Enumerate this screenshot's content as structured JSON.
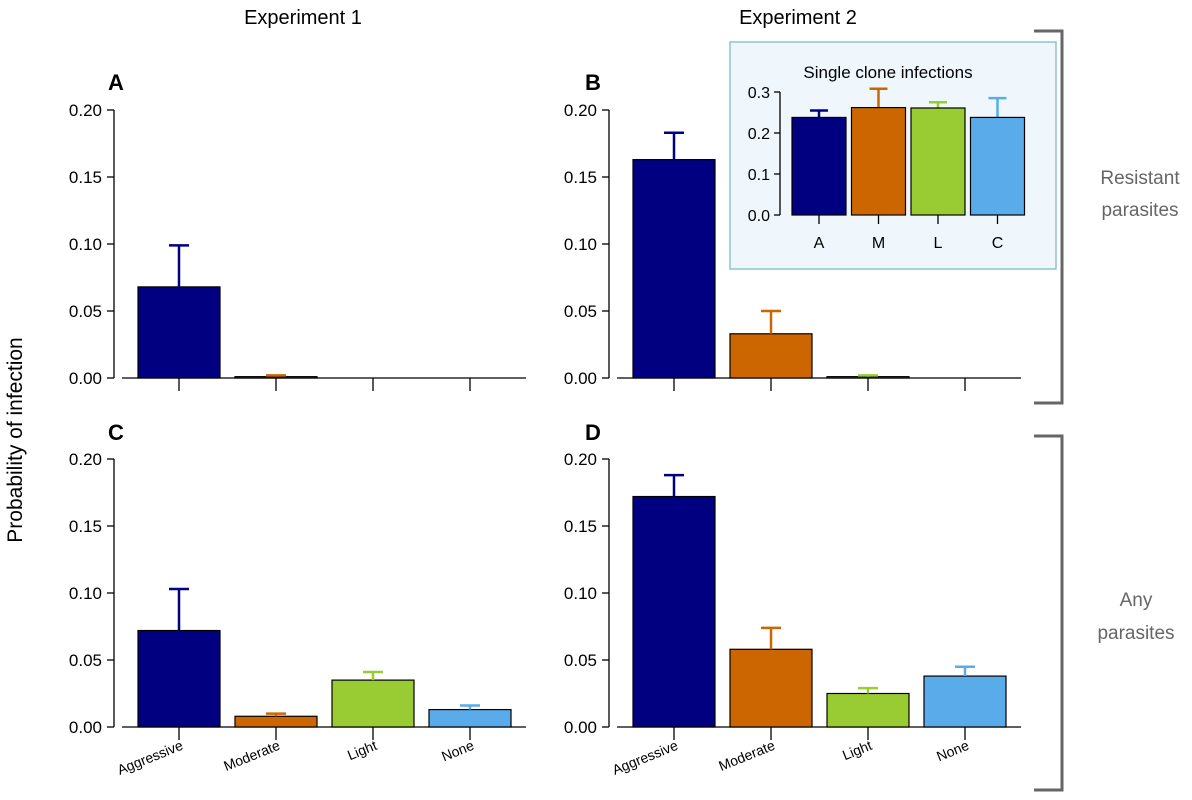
{
  "figure": {
    "column_titles": [
      "Experiment 1",
      "Experiment 2"
    ],
    "y_axis_label": "Probability of infection",
    "row_labels": [
      [
        "Resistant",
        "parasites"
      ],
      [
        "Any",
        "parasites"
      ]
    ]
  },
  "colors": {
    "Aggressive": "#000080",
    "Moderate": "#cc6600",
    "Light": "#99cc33",
    "None": "#5aabea"
  },
  "chart_data": [
    {
      "id": "A",
      "type": "bar",
      "panel_label": "A",
      "categories": [
        "Aggressive",
        "Moderate",
        "Light",
        "None"
      ],
      "values": [
        0.068,
        0.001,
        0.0,
        0.0
      ],
      "error_upper": [
        0.099,
        0.002,
        0.0,
        0.0
      ],
      "ylim": [
        0,
        0.2
      ],
      "yticks": [
        "0.00",
        "0.05",
        "0.10",
        "0.15",
        "0.20"
      ],
      "show_category_labels": false
    },
    {
      "id": "B",
      "type": "bar",
      "panel_label": "B",
      "categories": [
        "Aggressive",
        "Moderate",
        "Light",
        "None"
      ],
      "values": [
        0.163,
        0.033,
        0.001,
        0.0
      ],
      "error_upper": [
        0.183,
        0.05,
        0.002,
        0.0
      ],
      "ylim": [
        0,
        0.2
      ],
      "yticks": [
        "0.00",
        "0.05",
        "0.10",
        "0.15",
        "0.20"
      ],
      "show_category_labels": false
    },
    {
      "id": "C",
      "type": "bar",
      "panel_label": "C",
      "categories": [
        "Aggressive",
        "Moderate",
        "Light",
        "None"
      ],
      "values": [
        0.072,
        0.008,
        0.035,
        0.013
      ],
      "error_upper": [
        0.103,
        0.01,
        0.041,
        0.016
      ],
      "ylim": [
        0,
        0.2
      ],
      "yticks": [
        "0.00",
        "0.05",
        "0.10",
        "0.15",
        "0.20"
      ],
      "show_category_labels": true
    },
    {
      "id": "D",
      "type": "bar",
      "panel_label": "D",
      "categories": [
        "Aggressive",
        "Moderate",
        "Light",
        "None"
      ],
      "values": [
        0.172,
        0.058,
        0.025,
        0.038
      ],
      "error_upper": [
        0.188,
        0.074,
        0.029,
        0.045
      ],
      "ylim": [
        0,
        0.2
      ],
      "yticks": [
        "0.00",
        "0.05",
        "0.10",
        "0.15",
        "0.20"
      ],
      "show_category_labels": true
    },
    {
      "id": "inset",
      "type": "bar",
      "title": "Single clone infections",
      "categories": [
        "A",
        "M",
        "L",
        "C"
      ],
      "values": [
        0.238,
        0.262,
        0.261,
        0.238
      ],
      "error_upper": [
        0.255,
        0.308,
        0.275,
        0.285
      ],
      "ylim": [
        0,
        0.3
      ],
      "yticks": [
        "0.0",
        "0.1",
        "0.2",
        "0.3"
      ]
    }
  ]
}
